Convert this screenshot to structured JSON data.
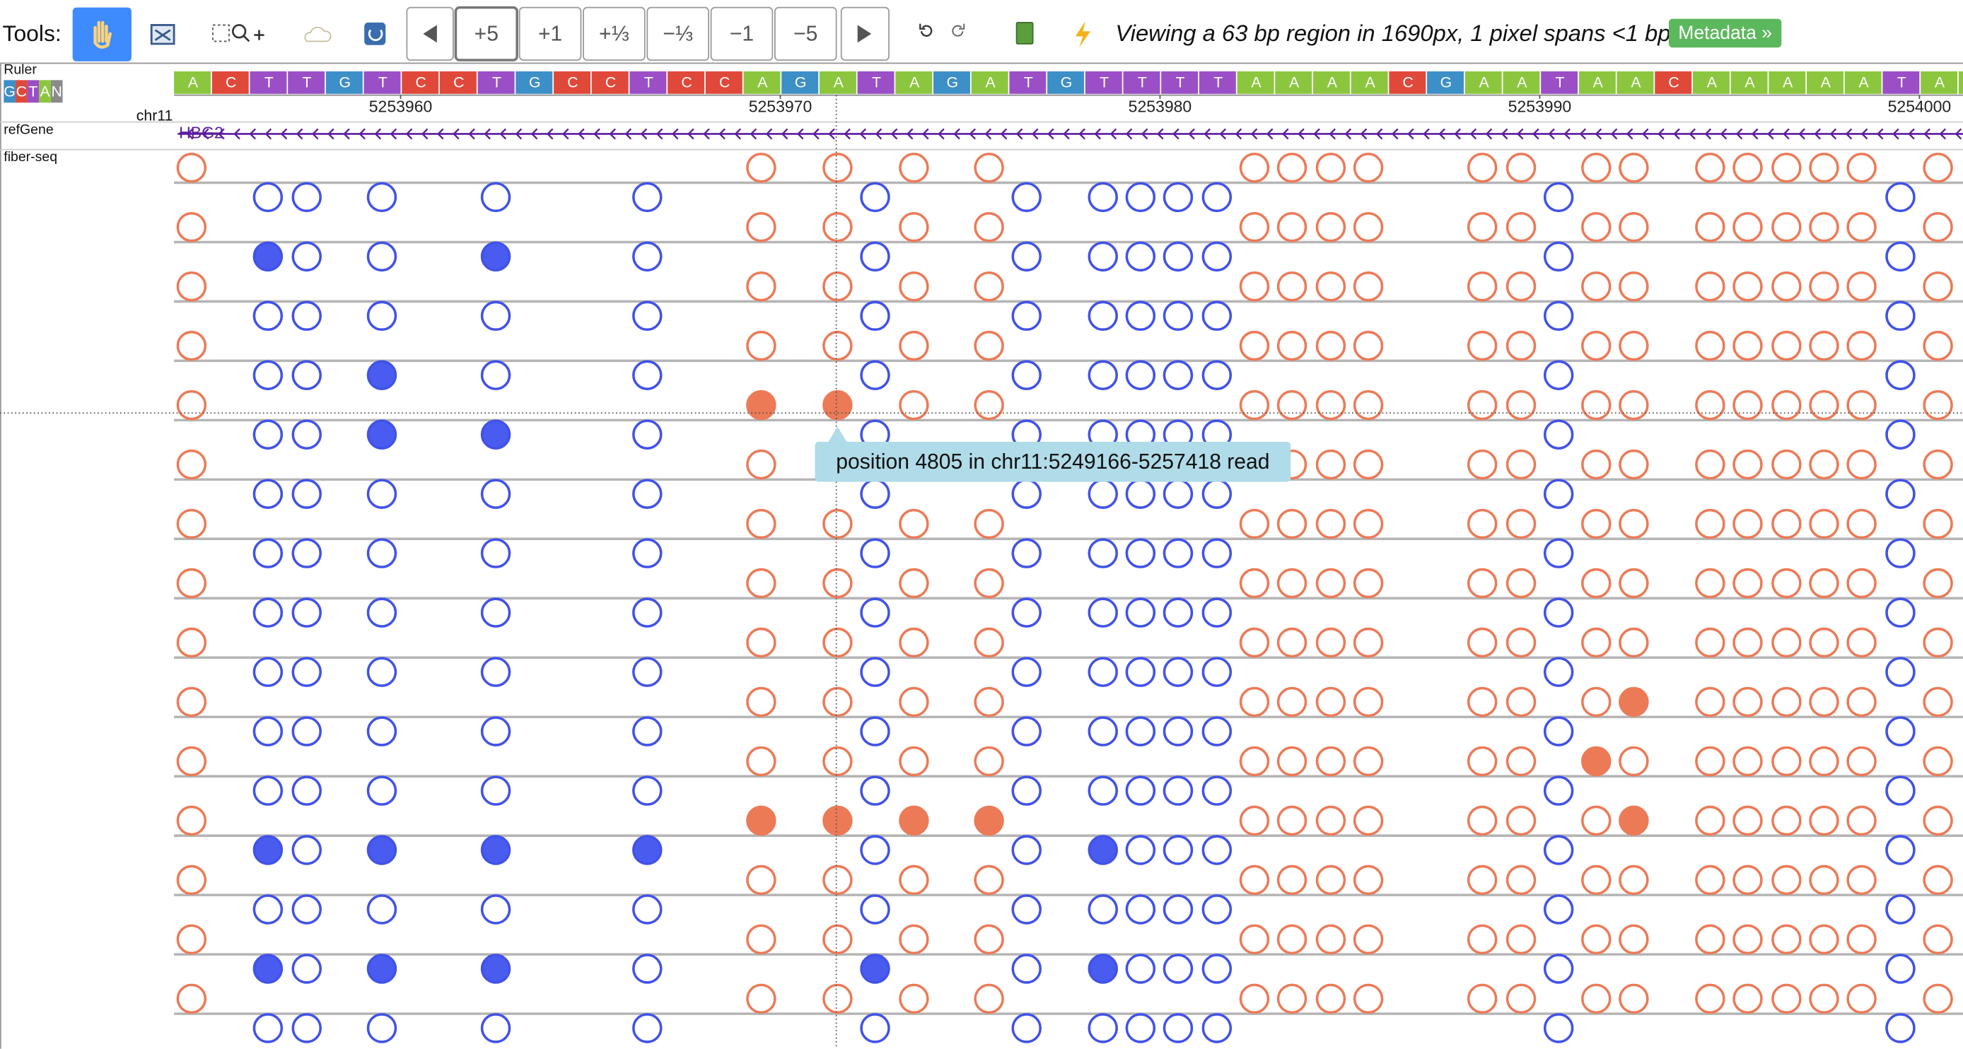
{
  "toolbar": {
    "label": "Tools:",
    "buttons": [
      "+5",
      "+1",
      "+⅓",
      "−⅓",
      "−1",
      "−5"
    ]
  },
  "status": "Viewing a 63 bp region in 1690px, 1 pixel spans <1 bp",
  "metadata_button": "Metadata »",
  "tracks": {
    "ruler": "Ruler",
    "legend": [
      "G",
      "C",
      "T",
      "A",
      "N"
    ],
    "chromosome": "chr11",
    "refgene": "refGene",
    "fiberseq": "fiber-seq"
  },
  "ruler_ticks": [
    "5253960",
    "5253970",
    "5253980",
    "5253990",
    "5254000"
  ],
  "sequence": [
    "A",
    "C",
    "T",
    "T",
    "G",
    "T",
    "C",
    "C",
    "T",
    "G",
    "C",
    "C",
    "T",
    "C",
    "C",
    "A",
    "G",
    "A",
    "T",
    "A",
    "G",
    "A",
    "T",
    "G",
    "T",
    "T",
    "T",
    "T",
    "A",
    "A",
    "A",
    "A",
    "C",
    "G",
    "A",
    "A",
    "T",
    "A",
    "A",
    "C",
    "A",
    "A",
    "A",
    "A",
    "A",
    "T",
    "A"
  ],
  "gene": "HBG2",
  "tooltip": "position 4805 in chr11:5249166-5257418 read"
}
